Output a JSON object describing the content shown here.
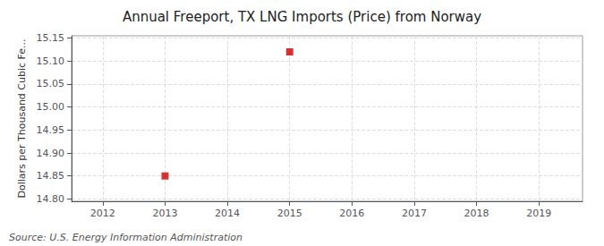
{
  "chart_data": {
    "type": "scatter",
    "title": "Annual Freeport, TX LNG Imports (Price) from Norway",
    "ylabel": "Dollars per Thousand Cubic Fe...",
    "annotations": [
      "Source: U.S. Energy Information Administration"
    ],
    "x": [
      2013,
      2015
    ],
    "values": [
      14.85,
      15.12
    ],
    "color": "#cc0000",
    "marker": "square",
    "xlim": [
      2011.5,
      2019.7
    ],
    "xticks": [
      2012,
      2013,
      2014,
      2015,
      2016,
      2017,
      2018,
      2019
    ],
    "ylim": [
      14.795,
      15.155
    ],
    "yticks": [
      {
        "value": 14.8,
        "label": "14.80"
      },
      14.85,
      {
        "value": 14.9,
        "label": "14.90"
      },
      14.95,
      {
        "value": 15.0,
        "label": "15.00"
      },
      15.05,
      {
        "value": 15.1,
        "label": "15.10"
      },
      15.15
    ],
    "grid": true
  }
}
